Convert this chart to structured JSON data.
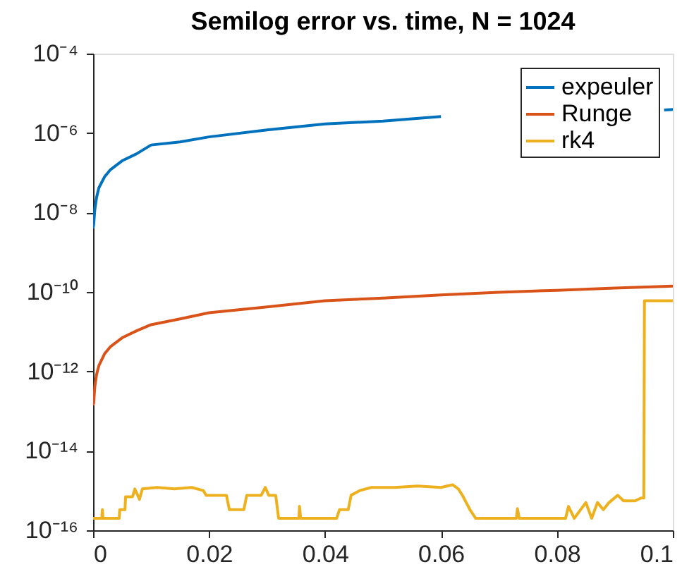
{
  "chart_data": {
    "type": "line",
    "title": "Semilog error vs. time, N = 1024",
    "log": "y",
    "grid": false,
    "legend": "top right",
    "line_style": "solid",
    "marker": "none",
    "xlim": [
      0,
      0.1
    ],
    "xticks": [
      0,
      0.02,
      0.04,
      0.06,
      0.08,
      0.1
    ],
    "ylim": [
      1e-16,
      0.0001
    ],
    "yticks": [
      {
        "value": 1e-16,
        "label": "10⁻¹⁶"
      },
      {
        "value": 1e-14,
        "label": "10⁻¹⁴"
      },
      {
        "value": 1e-12,
        "label": "10⁻¹²"
      },
      {
        "value": 1e-10,
        "label": "10⁻¹⁰"
      },
      {
        "value": 1e-08,
        "label": "10⁻⁸"
      },
      {
        "value": 1e-06,
        "label": "10⁻⁶"
      },
      {
        "value": 0.0001,
        "label": "10⁻⁴"
      }
    ],
    "series": [
      {
        "name": "expeuler",
        "color": "#0072bd",
        "x": [
          0,
          0.0001,
          0.0003,
          0.0006,
          0.001,
          0.002,
          0.003,
          0.005,
          0.0075,
          0.01,
          0.015,
          0.02,
          0.03,
          0.04,
          0.05,
          0.06,
          0.07,
          0.08,
          0.09,
          0.0985,
          0.1
        ],
        "values": [
          4e-09,
          5e-09,
          1.2e-08,
          2.4e-08,
          4.2e-08,
          8e-08,
          1.2e-07,
          2e-07,
          3e-07,
          5e-07,
          6e-07,
          8e-07,
          1.2e-06,
          1.7e-06,
          2e-06,
          2.6e-06,
          null,
          null,
          null,
          3.8e-06,
          3.9e-06
        ]
      },
      {
        "name": "Runge",
        "color": "#d95319",
        "x": [
          0,
          0.0001,
          0.0003,
          0.0006,
          0.001,
          0.002,
          0.003,
          0.005,
          0.0075,
          0.01,
          0.015,
          0.02,
          0.03,
          0.04,
          0.05,
          0.06,
          0.07,
          0.08,
          0.09,
          0.1
        ],
        "values": [
          1.4e-13,
          1.6e-13,
          4.2e-13,
          8.4e-13,
          1.4e-12,
          2.8e-12,
          4.2e-12,
          7e-12,
          1.05e-11,
          1.5e-11,
          2.1e-11,
          3e-11,
          4.2e-11,
          6e-11,
          7e-11,
          8.4e-11,
          9.8e-11,
          1.1e-10,
          1.25e-10,
          1.4e-10
        ]
      },
      {
        "name": "rk4",
        "color": "#edb120",
        "x": [
          0,
          0.0015,
          0.0016,
          0.0017,
          0.0045,
          0.0046,
          0.0055,
          0.0056,
          0.0068,
          0.0072,
          0.008,
          0.0085,
          0.011,
          0.014,
          0.017,
          0.019,
          0.0195,
          0.023,
          0.0235,
          0.026,
          0.0265,
          0.029,
          0.0297,
          0.0303,
          0.0315,
          0.032,
          0.0355,
          0.0356,
          0.0358,
          0.042,
          0.0425,
          0.044,
          0.0445,
          0.046,
          0.048,
          0.052,
          0.056,
          0.06,
          0.062,
          0.063,
          0.0637,
          0.065,
          0.066,
          0.073,
          0.0732,
          0.0735,
          0.0815,
          0.082,
          0.083,
          0.085,
          0.086,
          0.087,
          0.088,
          0.089,
          0.0905,
          0.0915,
          0.0935,
          0.0945,
          0.095,
          0.0951,
          0.1
        ],
        "values": [
          2e-16,
          2e-16,
          3.3e-16,
          2e-16,
          2e-16,
          3.3e-16,
          3.3e-16,
          7e-16,
          7e-16,
          1.1e-15,
          6e-16,
          1.1e-15,
          1.2e-15,
          1.1e-15,
          1.2e-15,
          1e-15,
          7.6e-16,
          7.6e-16,
          3.3e-16,
          3.3e-16,
          7.6e-16,
          7.6e-16,
          1.2e-15,
          7.6e-16,
          7.6e-16,
          2e-16,
          2e-16,
          4e-16,
          2e-16,
          2e-16,
          3.3e-16,
          3.3e-16,
          7.6e-16,
          1e-15,
          1.2e-15,
          1.2e-15,
          1.3e-15,
          1.2e-15,
          1.4e-15,
          1.1e-15,
          7.6e-16,
          3.3e-16,
          2e-16,
          2e-16,
          3.5e-16,
          2e-16,
          2e-16,
          4e-16,
          2e-16,
          5e-16,
          2e-16,
          5e-16,
          3.3e-16,
          5e-16,
          7.6e-16,
          5.5e-16,
          5.5e-16,
          6.5e-16,
          6.5e-16,
          6e-11,
          6e-11
        ]
      }
    ]
  }
}
